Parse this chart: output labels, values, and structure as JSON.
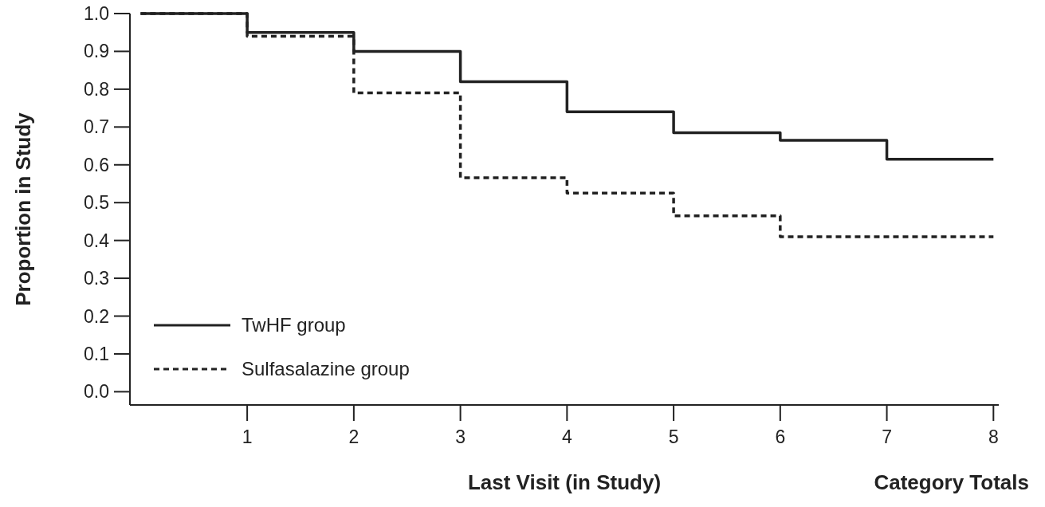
{
  "chart_data": {
    "type": "step",
    "xlabel": "Last Visit (in Study)",
    "ylabel": "Proportion in Study",
    "annotations": [
      "Category Totals"
    ],
    "x": [
      0,
      1,
      2,
      3,
      4,
      5,
      6,
      7,
      8
    ],
    "xlim": [
      -0.1,
      8.05
    ],
    "xticks": [
      1,
      2,
      3,
      4,
      5,
      6,
      7,
      8
    ],
    "ylim": [
      -0.035,
      1.0
    ],
    "yticks": [
      {
        "value": 0,
        "label": "0.0"
      },
      {
        "value": 0.1,
        "label": "0.1"
      },
      {
        "value": 0.2,
        "label": "0.2"
      },
      {
        "value": 0.3,
        "label": "0.3"
      },
      {
        "value": 0.4,
        "label": "0.4"
      },
      {
        "value": 0.5,
        "label": "0.5"
      },
      {
        "value": 0.6,
        "label": "0.6"
      },
      {
        "value": 0.7,
        "label": "0.7"
      },
      {
        "value": 0.8,
        "label": "0.8"
      },
      {
        "value": 0.9,
        "label": "0.9"
      },
      {
        "value": 1,
        "label": "1.0"
      }
    ],
    "series": [
      {
        "name": "TwHF group",
        "color": "#222222",
        "line_style": "solid",
        "values": [
          1.0,
          0.95,
          0.9,
          0.82,
          0.74,
          0.685,
          0.665,
          0.615,
          0.615
        ]
      },
      {
        "name": "Sulfasalazine group",
        "color": "#222222",
        "line_style": "dashed",
        "values": [
          1.0,
          0.94,
          0.79,
          0.566,
          0.525,
          0.465,
          0.41,
          0.41,
          0.41
        ]
      }
    ],
    "legend": "bottom left",
    "marker": "none",
    "grid": false
  }
}
